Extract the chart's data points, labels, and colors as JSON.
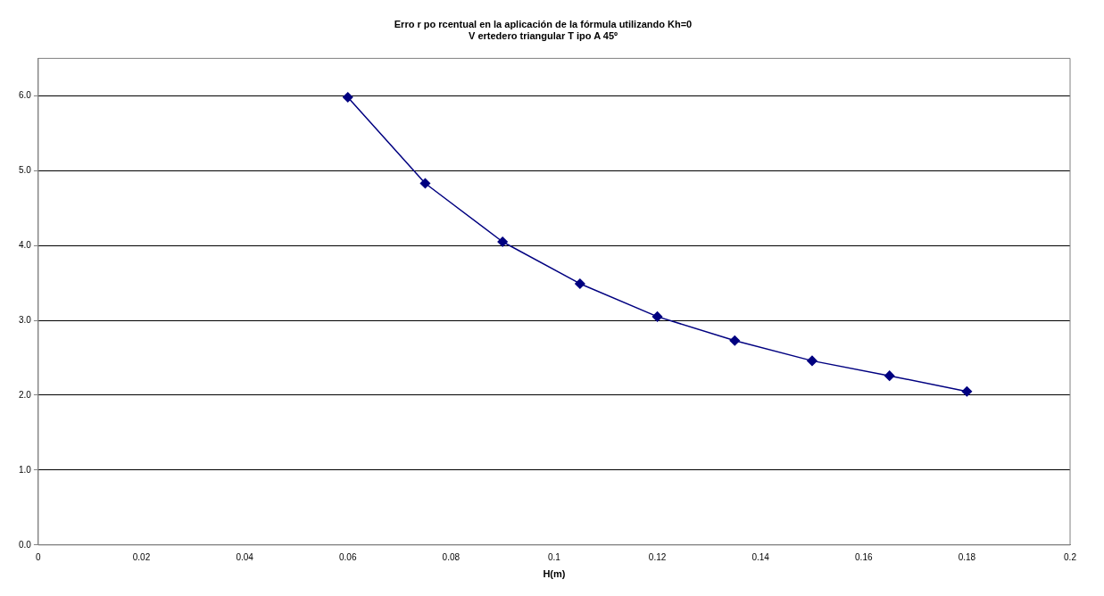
{
  "chart_data": {
    "type": "line",
    "title": [
      "Erro r po rcentual en la aplicación de la fórmula utilizando Kh=0",
      "V ertedero triangular T ipo A 45º"
    ],
    "xlabel": "H(m)",
    "x": [
      0.06,
      0.075,
      0.09,
      0.105,
      0.12,
      0.135,
      0.15,
      0.165,
      0.18
    ],
    "series": [
      {
        "color": "#000080",
        "values": [
          5.98,
          4.83,
          4.05,
          3.49,
          3.05,
          2.73,
          2.46,
          2.26,
          2.05
        ]
      }
    ],
    "xlim": [
      0,
      0.2
    ],
    "xticks": [
      0,
      0.02,
      0.04,
      0.06,
      0.08,
      0.1,
      0.12,
      0.14,
      0.16,
      0.18,
      0.2
    ],
    "ylim": [
      0,
      6.5
    ],
    "yticks": [
      {
        "value": 0,
        "label": "0.0"
      },
      {
        "value": 1,
        "label": "1.0"
      },
      {
        "value": 2,
        "label": "2.0"
      },
      {
        "value": 3,
        "label": "3.0"
      },
      {
        "value": 4,
        "label": "4.0"
      },
      {
        "value": 5,
        "label": "5.0"
      },
      {
        "value": 6,
        "label": "6.0"
      }
    ],
    "grid": "y",
    "legend": false,
    "marker": "diamond",
    "line_style": "solid"
  }
}
